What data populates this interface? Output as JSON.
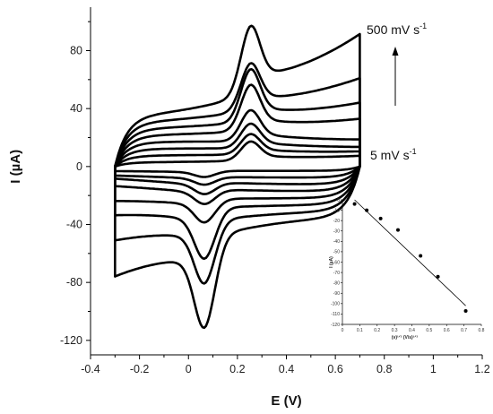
{
  "colors": {
    "curve": "#000000",
    "axis": "#000000",
    "text": "#111111"
  },
  "chart_data": [
    {
      "type": "line",
      "title": "",
      "xlabel": "E (V)",
      "ylabel": "I (µA)",
      "xlim": [
        -0.4,
        1.2
      ],
      "ylim": [
        -130,
        110
      ],
      "xticks": [
        -0.4,
        -0.2,
        0,
        0.2,
        0.4,
        0.6,
        0.8,
        1,
        1.2
      ],
      "xtick_labels": [
        "-0.4",
        "-0.2",
        "0",
        "0.2",
        "0.4",
        "0.6",
        "0.8",
        "1",
        "1.2"
      ],
      "yticks": [
        -120,
        -80,
        -40,
        0,
        40,
        80
      ],
      "ytick_labels": [
        "-120",
        "-80",
        "-40",
        "0",
        "40",
        "80"
      ],
      "annotations": {
        "top": "500 mV s",
        "bottom": "5 mV s",
        "exponent": "-1"
      },
      "series": [
        {
          "ipa": 18,
          "ipc": -6,
          "ia": 7,
          "ic": -3
        },
        {
          "ipa": 21,
          "ipc": -9,
          "ia": 10,
          "ic": -6
        },
        {
          "ipa": 26,
          "ipc": -13,
          "ia": 13,
          "ic": -8
        },
        {
          "ipa": 34,
          "ipc": -18,
          "ia": 18,
          "ic": -13
        },
        {
          "ipa": 54,
          "ipc": -30,
          "ia": 32,
          "ic": -23
        },
        {
          "ipa": 66,
          "ipc": -54,
          "ia": 43,
          "ic": -32
        },
        {
          "ipa": 74,
          "ipc": -72,
          "ia": 60,
          "ic": -49
        },
        {
          "ipa": 109,
          "ipc": -105,
          "ia": 90,
          "ic": -73
        }
      ]
    },
    {
      "type": "scatter",
      "title": "",
      "xlabel": "(v)¹ᐟ² (V/s)¹ᐟ²",
      "ylabel": "I (µA)",
      "xlim": [
        0,
        0.8
      ],
      "ylim": [
        -120,
        0
      ],
      "xticks": [
        0,
        0.1,
        0.2,
        0.3,
        0.4,
        0.5,
        0.6,
        0.7,
        0.8
      ],
      "xtick_labels": [
        "0",
        "0.1",
        "0.2",
        "0.3",
        "0.4",
        "0.5",
        "0.6",
        "0.7",
        "0.8"
      ],
      "yticks": [
        0,
        -10,
        -20,
        -30,
        -40,
        -50,
        -60,
        -70,
        -80,
        -90,
        -100,
        -110,
        -120
      ],
      "ytick_labels": [
        "0",
        "-10",
        "-20",
        "-30",
        "-40",
        "-50",
        "-60",
        "-70",
        "-80",
        "-90",
        "-100",
        "-110",
        "-120"
      ],
      "x": [
        0.07,
        0.14,
        0.22,
        0.32,
        0.45,
        0.55,
        0.71
      ],
      "y": [
        -4,
        -10,
        -18,
        -29,
        -54,
        -74,
        -107
      ],
      "fit": {
        "x": [
          0.07,
          0.71
        ],
        "y": [
          0,
          -102
        ]
      }
    }
  ]
}
